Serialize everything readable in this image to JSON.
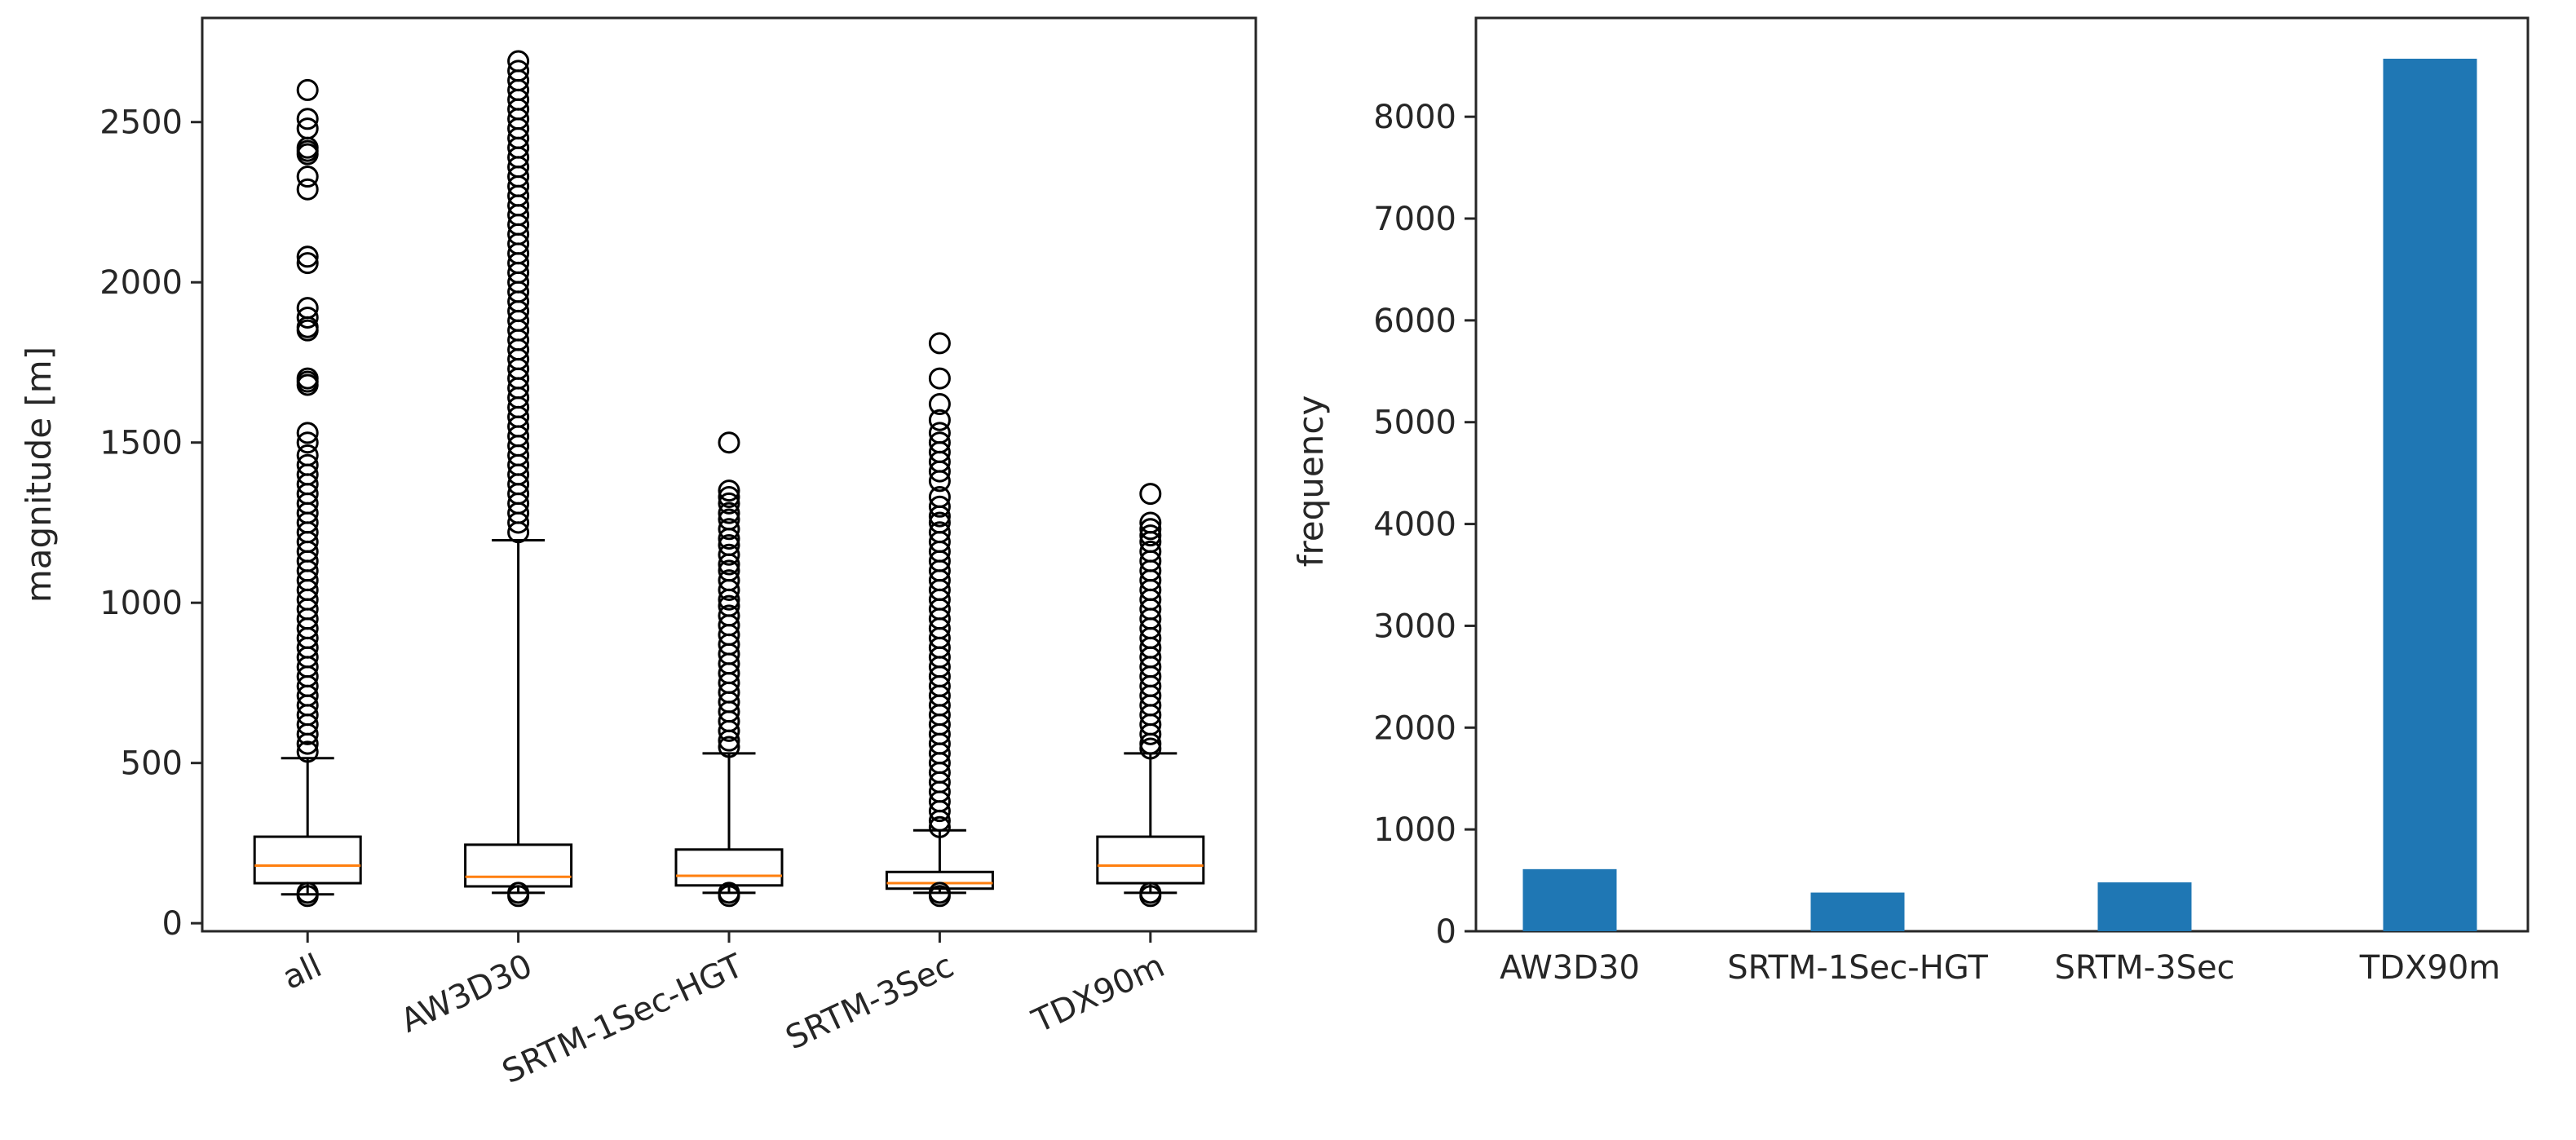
{
  "chart_data": [
    {
      "type": "box",
      "ylabel": "magnitude [m]",
      "ylim": [
        -25,
        2825
      ],
      "yticks": [
        0,
        500,
        1000,
        1500,
        2000,
        2500
      ],
      "categories": [
        "all",
        "AW3D30",
        "SRTM-1Sec-HGT",
        "SRTM-3Sec",
        "TDX90m"
      ],
      "boxes": [
        {
          "whisker_low": 90,
          "q1": 125,
          "median": 180,
          "q3": 270,
          "whisker_high": 515,
          "fliers": [
            2600,
            2510,
            2480,
            2420,
            2410,
            2400,
            2330,
            2290,
            2080,
            2060,
            1920,
            1890,
            1860,
            1850,
            1700,
            1690,
            1680,
            1530,
            1500,
            1460,
            1430,
            1400,
            1370,
            1340,
            1310,
            1280,
            1250,
            1220,
            1190,
            1160,
            1130,
            1100,
            1070,
            1040,
            1010,
            980,
            950,
            920,
            890,
            860,
            830,
            800,
            770,
            740,
            710,
            680,
            650,
            620,
            590,
            560,
            535,
            95,
            85
          ]
        },
        {
          "whisker_low": 95,
          "q1": 115,
          "median": 145,
          "q3": 245,
          "whisker_high": 1195,
          "fliers": [
            2690,
            2660,
            2630,
            2600,
            2570,
            2540,
            2510,
            2480,
            2450,
            2420,
            2390,
            2360,
            2330,
            2300,
            2270,
            2240,
            2210,
            2180,
            2150,
            2120,
            2090,
            2060,
            2030,
            2000,
            1970,
            1940,
            1910,
            1880,
            1850,
            1820,
            1790,
            1760,
            1730,
            1700,
            1670,
            1640,
            1610,
            1580,
            1550,
            1520,
            1490,
            1460,
            1430,
            1400,
            1370,
            1340,
            1310,
            1280,
            1250,
            1220,
            95,
            85
          ]
        },
        {
          "whisker_low": 95,
          "q1": 118,
          "median": 148,
          "q3": 230,
          "whisker_high": 530,
          "fliers": [
            1500,
            1350,
            1330,
            1310,
            1280,
            1260,
            1230,
            1200,
            1180,
            1150,
            1120,
            1100,
            1070,
            1040,
            1010,
            990,
            960,
            930,
            900,
            870,
            840,
            810,
            780,
            750,
            720,
            690,
            660,
            630,
            600,
            570,
            550,
            95,
            85
          ]
        },
        {
          "whisker_low": 95,
          "q1": 108,
          "median": 125,
          "q3": 160,
          "whisker_high": 290,
          "fliers": [
            1810,
            1700,
            1620,
            1570,
            1530,
            1500,
            1470,
            1440,
            1410,
            1380,
            1330,
            1300,
            1270,
            1250,
            1220,
            1190,
            1160,
            1130,
            1100,
            1070,
            1040,
            1010,
            980,
            950,
            920,
            890,
            860,
            830,
            800,
            770,
            740,
            710,
            680,
            650,
            620,
            590,
            560,
            530,
            500,
            470,
            440,
            410,
            380,
            350,
            320,
            300,
            95,
            85
          ]
        },
        {
          "whisker_low": 95,
          "q1": 125,
          "median": 180,
          "q3": 270,
          "whisker_high": 530,
          "fliers": [
            1340,
            1250,
            1230,
            1210,
            1190,
            1160,
            1130,
            1100,
            1070,
            1040,
            1010,
            980,
            950,
            920,
            890,
            860,
            830,
            800,
            770,
            740,
            710,
            680,
            650,
            620,
            590,
            560,
            545,
            95,
            85
          ]
        }
      ],
      "colors": {
        "median": "#ff7f0e",
        "box": "#000000"
      }
    },
    {
      "type": "bar",
      "ylabel": "frequency",
      "ylim": [
        0,
        9000
      ],
      "yticks": [
        0,
        1000,
        2000,
        3000,
        4000,
        5000,
        6000,
        7000,
        8000
      ],
      "categories": [
        "AW3D30",
        "SRTM-1Sec-HGT",
        "SRTM-3Sec",
        "TDX90m"
      ],
      "values": [
        610,
        380,
        480,
        8570
      ],
      "colors": {
        "bar": "#1f77b4"
      }
    }
  ]
}
